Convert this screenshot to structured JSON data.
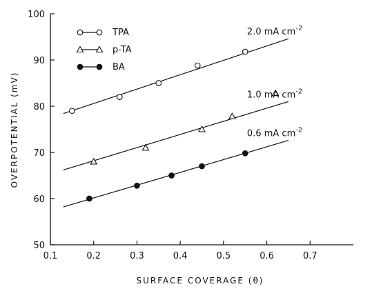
{
  "chart_data": {
    "type": "scatter",
    "xlabel": "SURFACE COVERAGE (θ)",
    "ylabel": "OVERPOTENTIAL (mV)",
    "xlim": [
      0.1,
      0.8
    ],
    "ylim": [
      50,
      100
    ],
    "xticks": [
      0.1,
      0.2,
      0.3,
      0.4,
      0.5,
      0.6,
      0.7
    ],
    "xtick_labels": [
      "0.1",
      "0.2",
      "0.3",
      "0.4",
      "0.5",
      "0.6",
      "0.7"
    ],
    "yticks": [
      50,
      60,
      70,
      80,
      90,
      100
    ],
    "ytick_labels": [
      "50",
      "60",
      "70",
      "80",
      "90",
      "100"
    ],
    "grid": false,
    "legend_position": "top-left",
    "series": [
      {
        "name": "TPA",
        "marker": "open-circle",
        "points": [
          [
            0.15,
            79.0
          ],
          [
            0.26,
            82.0
          ],
          [
            0.35,
            85.0
          ],
          [
            0.44,
            88.8
          ],
          [
            0.55,
            91.8
          ]
        ],
        "fit": [
          [
            0.13,
            78.4
          ],
          [
            0.65,
            94.6
          ]
        ],
        "label_text": "2.0 mA cm",
        "label_sup": "-2"
      },
      {
        "name": "p-TA",
        "marker": "open-triangle",
        "points": [
          [
            0.2,
            68.0
          ],
          [
            0.32,
            71.0
          ],
          [
            0.45,
            75.0
          ],
          [
            0.52,
            77.8
          ],
          [
            0.62,
            82.8
          ]
        ],
        "fit": [
          [
            0.13,
            66.2
          ],
          [
            0.65,
            81.0
          ]
        ],
        "label_text": "1.0 mA cm",
        "label_sup": "-2"
      },
      {
        "name": "BA",
        "marker": "filled-circle",
        "points": [
          [
            0.19,
            60.0
          ],
          [
            0.3,
            62.8
          ],
          [
            0.38,
            65.0
          ],
          [
            0.45,
            67.0
          ],
          [
            0.55,
            69.8
          ]
        ],
        "fit": [
          [
            0.13,
            58.2
          ],
          [
            0.65,
            72.6
          ]
        ],
        "label_text": "0.6 mA cm",
        "label_sup": "-2"
      }
    ]
  }
}
